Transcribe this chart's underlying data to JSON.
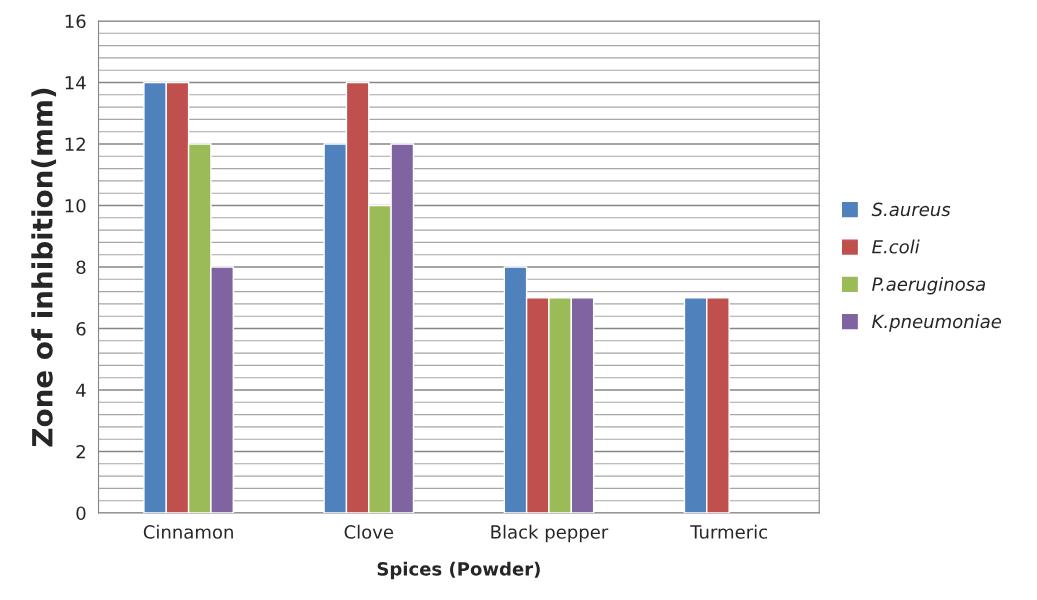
{
  "chart_data": {
    "type": "bar",
    "xlabel": "Spices (Powder)",
    "ylabel": "Zone of inhibition(mm)",
    "categories": [
      "Cinnamon",
      "Clove",
      "Black pepper",
      "Turmeric"
    ],
    "series": [
      {
        "name": "S.aureus",
        "color": "#4f81bd",
        "values": [
          14,
          12,
          8,
          7
        ]
      },
      {
        "name": "E.coli",
        "color": "#c0504d",
        "values": [
          14,
          14,
          7,
          7
        ]
      },
      {
        "name": "P.aeruginosa",
        "color": "#9bbb59",
        "values": [
          12,
          10,
          7,
          null
        ]
      },
      {
        "name": "K.pneumoniae",
        "color": "#8064a2",
        "values": [
          8,
          12,
          7,
          null
        ]
      }
    ],
    "ylim": [
      0,
      16
    ],
    "yticks": [
      0,
      2,
      4,
      6,
      8,
      10,
      12,
      14,
      16
    ],
    "grid": "y",
    "legend": "right"
  }
}
